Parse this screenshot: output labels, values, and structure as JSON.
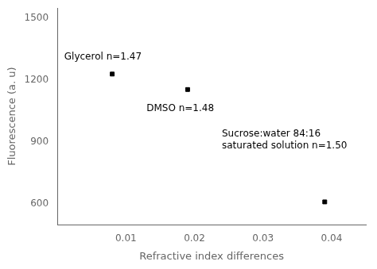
{
  "chart_data": {
    "type": "scatter",
    "x": [
      0.008,
      0.019,
      0.039
    ],
    "y": [
      1230,
      1155,
      610
    ],
    "xlabel": "Refractive index differences",
    "ylabel": "Fluorescence (a. u)",
    "annotations": [
      {
        "text": "Glycerol n=1.47",
        "x": 0.001,
        "y": 1290
      },
      {
        "text": "DMSO n=1.48",
        "x": 0.013,
        "y": 1040
      },
      {
        "text": "Sucrose:water 84:16\nsaturated solution n=1.50",
        "x": 0.024,
        "y": 860
      }
    ],
    "xlim": [
      0,
      0.045
    ],
    "ylim": [
      500,
      1550
    ],
    "xticks": [
      0.01,
      0.02,
      0.03,
      0.04
    ],
    "yticks": [
      600,
      900,
      1200,
      1500
    ],
    "color": "black",
    "marker": "square",
    "grid": false
  }
}
